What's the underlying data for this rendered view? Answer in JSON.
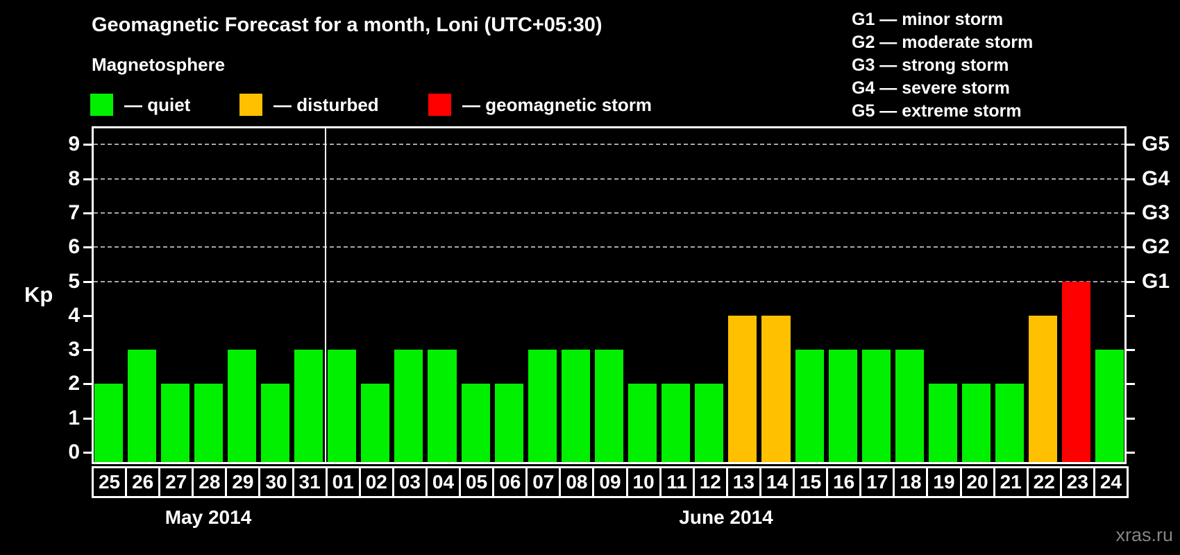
{
  "title": "Geomagnetic Forecast for a month, Loni (UTC+05:30)",
  "watermark": "xras.ru",
  "magnetosphere_legend": {
    "heading": "Magnetosphere",
    "items": [
      {
        "name": "quiet",
        "label": "— quiet",
        "color": "#00f000"
      },
      {
        "name": "disturbed",
        "label": "— disturbed",
        "color": "#ffc000"
      },
      {
        "name": "storm",
        "label": "— geomagnetic storm",
        "color": "#ff0000"
      }
    ]
  },
  "storm_scale_legend": {
    "items": [
      "G1 — minor storm",
      "G2 — moderate storm",
      "G3 — strong storm",
      "G4 — severe storm",
      "G5 — extreme storm"
    ]
  },
  "chart_data": {
    "type": "bar",
    "title": "Geomagnetic Forecast for a month, Loni (UTC+05:30)",
    "ylabel": "Kp",
    "ylim": [
      0,
      9
    ],
    "yticks": [
      0,
      1,
      2,
      3,
      4,
      5,
      6,
      7,
      8,
      9
    ],
    "gridlines": [
      5,
      6,
      7,
      8,
      9
    ],
    "grid": "dashed, levels 5-9 only",
    "legend_position": "top",
    "right_axis": [
      {
        "value": 5,
        "label": "G1"
      },
      {
        "value": 6,
        "label": "G2"
      },
      {
        "value": 7,
        "label": "G3"
      },
      {
        "value": 8,
        "label": "G4"
      },
      {
        "value": 9,
        "label": "G5"
      }
    ],
    "status_colors": {
      "quiet": "#00f000",
      "disturbed": "#ffc000",
      "storm": "#ff0000"
    },
    "months": [
      {
        "label": "May 2014",
        "days": [
          {
            "day": "25",
            "kp": 2,
            "status": "quiet"
          },
          {
            "day": "26",
            "kp": 3,
            "status": "quiet"
          },
          {
            "day": "27",
            "kp": 2,
            "status": "quiet"
          },
          {
            "day": "28",
            "kp": 2,
            "status": "quiet"
          },
          {
            "day": "29",
            "kp": 3,
            "status": "quiet"
          },
          {
            "day": "30",
            "kp": 2,
            "status": "quiet"
          },
          {
            "day": "31",
            "kp": 3,
            "status": "quiet"
          }
        ]
      },
      {
        "label": "June 2014",
        "days": [
          {
            "day": "01",
            "kp": 3,
            "status": "quiet"
          },
          {
            "day": "02",
            "kp": 2,
            "status": "quiet"
          },
          {
            "day": "03",
            "kp": 3,
            "status": "quiet"
          },
          {
            "day": "04",
            "kp": 3,
            "status": "quiet"
          },
          {
            "day": "05",
            "kp": 2,
            "status": "quiet"
          },
          {
            "day": "06",
            "kp": 2,
            "status": "quiet"
          },
          {
            "day": "07",
            "kp": 3,
            "status": "quiet"
          },
          {
            "day": "08",
            "kp": 3,
            "status": "quiet"
          },
          {
            "day": "09",
            "kp": 3,
            "status": "quiet"
          },
          {
            "day": "10",
            "kp": 2,
            "status": "quiet"
          },
          {
            "day": "11",
            "kp": 2,
            "status": "quiet"
          },
          {
            "day": "12",
            "kp": 2,
            "status": "quiet"
          },
          {
            "day": "13",
            "kp": 4,
            "status": "disturbed"
          },
          {
            "day": "14",
            "kp": 4,
            "status": "disturbed"
          },
          {
            "day": "15",
            "kp": 3,
            "status": "quiet"
          },
          {
            "day": "16",
            "kp": 3,
            "status": "quiet"
          },
          {
            "day": "17",
            "kp": 3,
            "status": "quiet"
          },
          {
            "day": "18",
            "kp": 3,
            "status": "quiet"
          },
          {
            "day": "19",
            "kp": 2,
            "status": "quiet"
          },
          {
            "day": "20",
            "kp": 2,
            "status": "quiet"
          },
          {
            "day": "21",
            "kp": 2,
            "status": "quiet"
          },
          {
            "day": "22",
            "kp": 4,
            "status": "disturbed"
          },
          {
            "day": "23",
            "kp": 5,
            "status": "storm"
          },
          {
            "day": "24",
            "kp": 3,
            "status": "quiet"
          }
        ]
      }
    ]
  }
}
